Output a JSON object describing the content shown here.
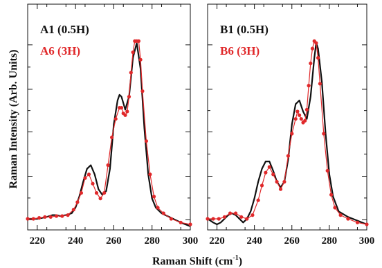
{
  "figure": {
    "ylabel": "Raman Intensity (Arb. Units)",
    "xlabel_main": "Raman Shift (cm",
    "xlabel_sup": "-1",
    "xlabel_tail": ")"
  },
  "colors": {
    "black": "#111111",
    "red": "#e0282a"
  },
  "chart_data": [
    {
      "type": "line",
      "panel": "left",
      "xlim": [
        215,
        300
      ],
      "ylim": [
        0,
        1.22
      ],
      "xticks": [
        220,
        240,
        260,
        280,
        300
      ],
      "xtick_labels": [
        "220",
        "240",
        "260",
        "280",
        "300"
      ],
      "yticks_major": [
        0.055,
        0.29,
        0.53,
        0.76,
        1.0
      ],
      "grid": false,
      "legend_position": "top-left",
      "series": [
        {
          "name": "A1 (0.5H)",
          "color": "#111111",
          "style": "line",
          "x": [
            215,
            220,
            225,
            228,
            230,
            232,
            235,
            238,
            240,
            242,
            244,
            246,
            248,
            250,
            252,
            254,
            256,
            258,
            260,
            262,
            263,
            264,
            266,
            268,
            270,
            272,
            274,
            276,
            278,
            280,
            282,
            285,
            290,
            295,
            300
          ],
          "y": [
            0.06,
            0.06,
            0.07,
            0.08,
            0.08,
            0.075,
            0.08,
            0.09,
            0.12,
            0.18,
            0.26,
            0.33,
            0.35,
            0.3,
            0.22,
            0.19,
            0.21,
            0.33,
            0.57,
            0.7,
            0.73,
            0.72,
            0.65,
            0.72,
            0.93,
            1.01,
            0.87,
            0.55,
            0.3,
            0.17,
            0.12,
            0.09,
            0.065,
            0.04,
            0.02
          ]
        },
        {
          "name": "A6 (3H)",
          "color": "#e0282a",
          "style": "line-markers",
          "x": [
            215,
            218,
            221,
            224,
            227,
            230,
            233,
            236,
            239,
            241,
            243,
            245,
            247,
            249,
            251,
            253,
            255,
            257,
            259,
            261,
            263,
            264,
            265,
            266,
            267,
            268,
            269,
            270,
            271,
            272,
            273,
            274,
            275,
            277,
            279,
            281,
            283,
            286,
            290,
            295,
            300
          ],
          "y": [
            0.06,
            0.06,
            0.065,
            0.07,
            0.07,
            0.075,
            0.075,
            0.08,
            0.11,
            0.15,
            0.2,
            0.28,
            0.3,
            0.25,
            0.2,
            0.17,
            0.2,
            0.35,
            0.5,
            0.6,
            0.66,
            0.66,
            0.63,
            0.62,
            0.64,
            0.72,
            0.85,
            0.96,
            1.02,
            1.02,
            1.02,
            0.92,
            0.75,
            0.48,
            0.3,
            0.18,
            0.12,
            0.09,
            0.06,
            0.04,
            0.03
          ]
        }
      ]
    },
    {
      "type": "line",
      "panel": "right",
      "xlim": [
        215,
        300
      ],
      "ylim": [
        0,
        1.22
      ],
      "xticks": [
        220,
        240,
        260,
        280,
        300
      ],
      "xtick_labels": [
        "220",
        "240",
        "260",
        "280",
        "300"
      ],
      "yticks_major": [
        0.055,
        0.29,
        0.53,
        0.76,
        1.0
      ],
      "grid": false,
      "legend_position": "top-left",
      "series": [
        {
          "name": "B1 (0.5H)",
          "color": "#111111",
          "style": "line",
          "x": [
            215,
            218,
            220,
            222,
            224,
            226,
            228,
            230,
            232,
            234,
            236,
            238,
            240,
            242,
            244,
            246,
            248,
            250,
            252,
            254,
            256,
            258,
            260,
            262,
            264,
            266,
            268,
            270,
            272,
            273,
            274,
            276,
            278,
            280,
            282,
            285,
            290,
            295,
            300
          ],
          "y": [
            0.06,
            0.04,
            0.03,
            0.04,
            0.06,
            0.08,
            0.09,
            0.08,
            0.06,
            0.04,
            0.06,
            0.1,
            0.17,
            0.26,
            0.33,
            0.37,
            0.37,
            0.32,
            0.26,
            0.23,
            0.26,
            0.38,
            0.57,
            0.68,
            0.7,
            0.64,
            0.6,
            0.72,
            0.93,
            1.01,
            0.98,
            0.8,
            0.52,
            0.3,
            0.18,
            0.1,
            0.07,
            0.05,
            0.03
          ]
        },
        {
          "name": "B6 (3H)",
          "color": "#e0282a",
          "style": "line-markers",
          "x": [
            215,
            218,
            221,
            224,
            227,
            230,
            233,
            236,
            239,
            242,
            244,
            246,
            248,
            250,
            252,
            254,
            256,
            258,
            260,
            262,
            263,
            264,
            265,
            266,
            267,
            268,
            269,
            270,
            271,
            272,
            273,
            274,
            275,
            277,
            279,
            281,
            283,
            286,
            290,
            295,
            300
          ],
          "y": [
            0.06,
            0.06,
            0.06,
            0.07,
            0.09,
            0.09,
            0.07,
            0.06,
            0.08,
            0.16,
            0.24,
            0.31,
            0.34,
            0.3,
            0.26,
            0.22,
            0.26,
            0.4,
            0.52,
            0.6,
            0.64,
            0.62,
            0.6,
            0.58,
            0.59,
            0.65,
            0.78,
            0.9,
            0.98,
            1.02,
            1.01,
            0.93,
            0.79,
            0.52,
            0.32,
            0.19,
            0.12,
            0.08,
            0.06,
            0.04,
            0.03
          ]
        }
      ]
    }
  ]
}
